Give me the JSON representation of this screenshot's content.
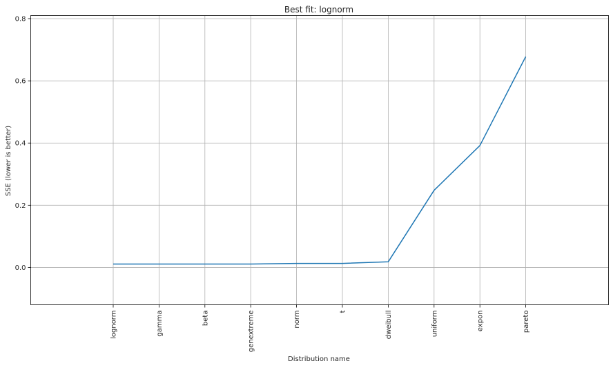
{
  "chart_data": {
    "type": "line",
    "title": "Best fit: lognorm",
    "xlabel": "Distribution name",
    "ylabel": "SSE (lower is better)",
    "categories": [
      "lognorm",
      "gamma",
      "beta",
      "genextreme",
      "norm",
      "t",
      "dweibull",
      "uniform",
      "expon",
      "pareto"
    ],
    "series": [
      {
        "values": [
          0.011,
          0.011,
          0.011,
          0.011,
          0.013,
          0.013,
          0.018,
          0.248,
          0.392,
          0.678
        ]
      }
    ],
    "ylim": [
      -0.12,
      0.81
    ],
    "yticks": [
      0.0,
      0.2,
      0.4,
      0.6,
      0.8
    ],
    "ytick_labels": [
      "0.0",
      "0.2",
      "0.4",
      "0.6",
      "0.8"
    ],
    "grid": true,
    "line_color": "#1f77b4",
    "grid_color": "#b0b0b0"
  }
}
